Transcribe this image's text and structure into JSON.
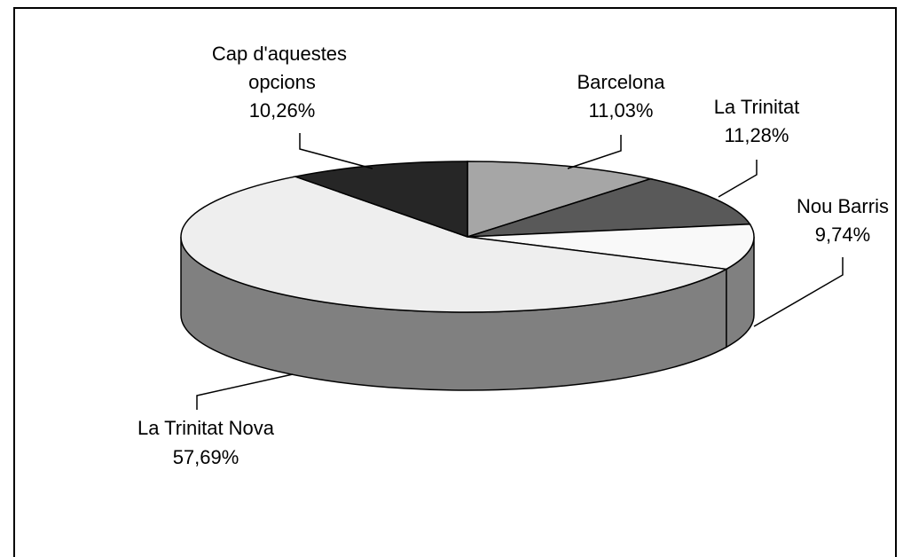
{
  "chart_data": {
    "type": "pie3d",
    "categories": [
      "Barcelona",
      "La Trinitat",
      "Nou Barris",
      "La Trinitat Nova",
      "Cap d'aquestes opcions"
    ],
    "values": [
      11.03,
      11.28,
      9.74,
      57.69,
      10.26
    ],
    "value_labels": [
      "11,03%",
      "11,28%",
      "9,74%",
      "57,69%",
      "10,26%"
    ],
    "colors": [
      "#a6a6a6",
      "#595959",
      "#f9f9f9",
      "#eeeeee",
      "#262626"
    ],
    "side_color": "#808080"
  }
}
